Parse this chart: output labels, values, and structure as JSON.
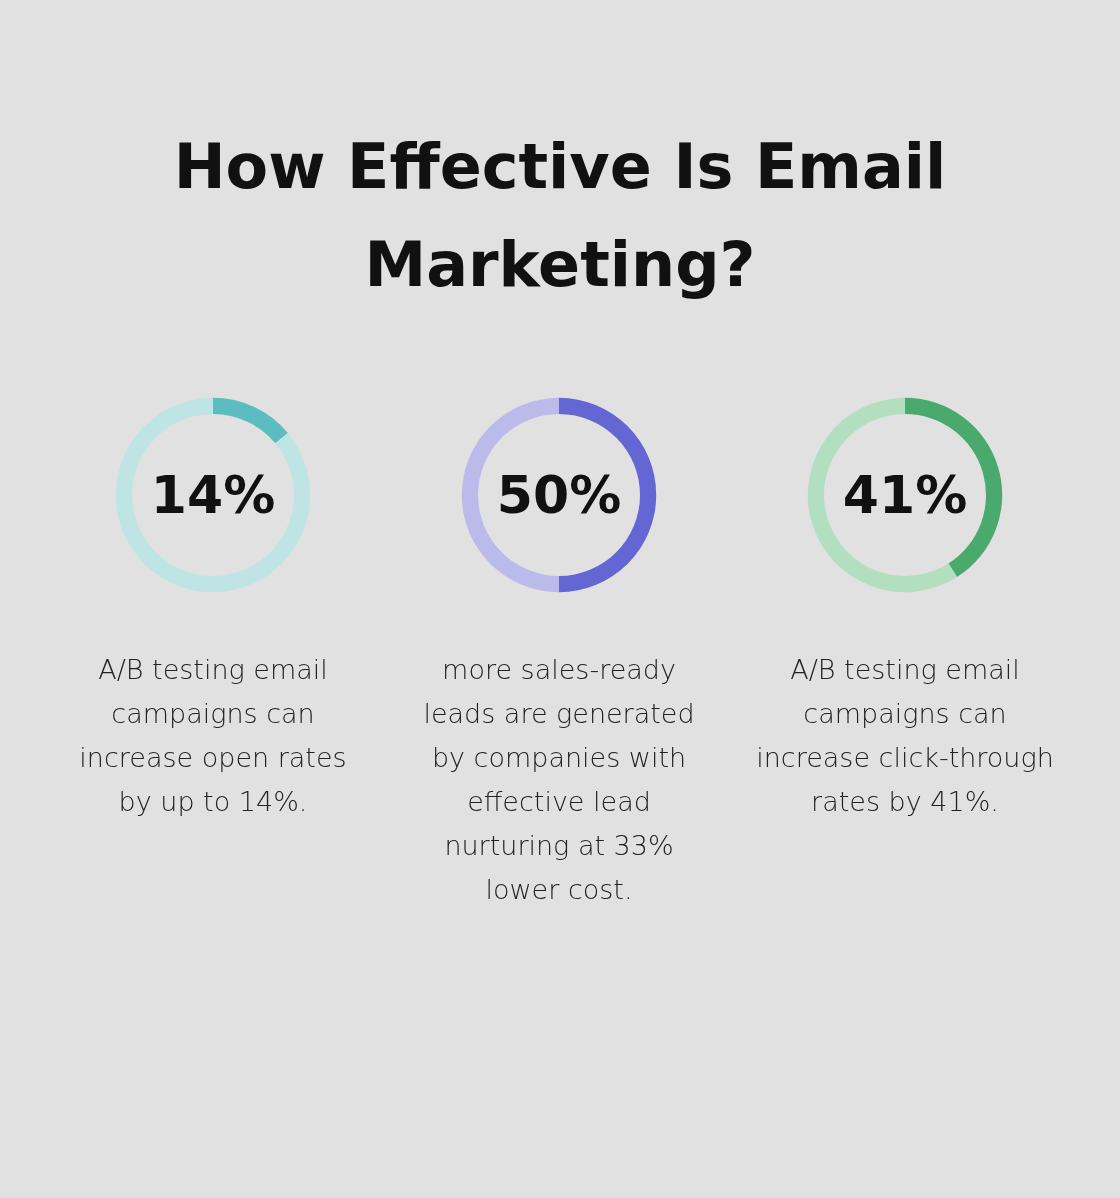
{
  "chart_data": [
    {
      "type": "other",
      "title": "How Effective Is Email Marketing?"
    },
    {
      "type": "donut",
      "title": "14%",
      "categories": [
        null,
        null
      ],
      "values": [
        14,
        86
      ],
      "colors": [
        "#5bbdc1",
        "#bfe4e4"
      ],
      "annotations": [
        "A/B testing email campaigns can increase open rates by up to 14%."
      ]
    },
    {
      "type": "donut",
      "title": "50%",
      "categories": [
        null,
        null
      ],
      "values": [
        50,
        50
      ],
      "colors": [
        "#6366d3",
        "#babbeb"
      ],
      "annotations": [
        "more sales-ready leads are generated by companies with effective lead nurturing at 33% lower cost."
      ]
    },
    {
      "type": "donut",
      "title": "41%",
      "categories": [
        null,
        null
      ],
      "values": [
        41,
        59
      ],
      "colors": [
        "#4aa96d",
        "#b3dfc1"
      ],
      "annotations": [
        "A/B testing email campaigns can increase click-through rates by 41%."
      ]
    }
  ]
}
